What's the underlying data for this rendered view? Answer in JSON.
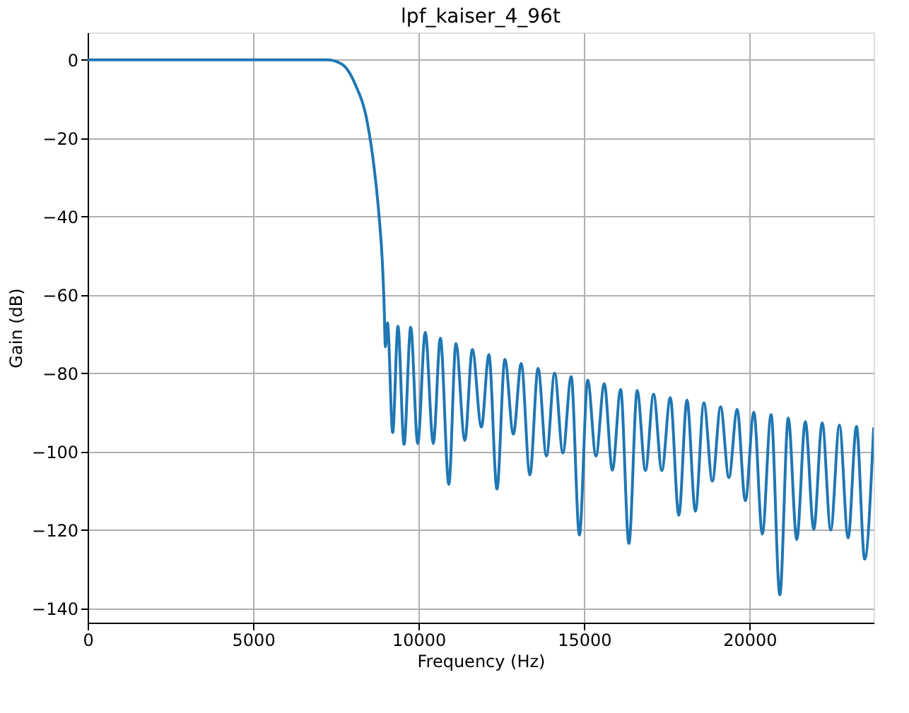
{
  "chart_data": {
    "type": "line",
    "title": "lpf_kaiser_4_96t",
    "xlabel": "Frequency (Hz)",
    "ylabel": "Gain (dB)",
    "xlim": [
      0,
      23750
    ],
    "ylim": [
      -143.6,
      7.0
    ],
    "xticks": [
      0,
      5000,
      10000,
      15000,
      20000
    ],
    "yticks": [
      0,
      -20,
      -40,
      -60,
      -80,
      -100,
      -120,
      -140
    ],
    "grid": true,
    "marker": "none",
    "line_style": "solid",
    "series": [
      {
        "color": "#1f77b4",
        "x": [
          0,
          7239,
          7667,
          8094,
          8449,
          8662,
          8805,
          8906,
          8962,
          8991,
          9000,
          9060,
          9218,
          9376,
          9560,
          9761,
          9974,
          10201,
          10444,
          10658,
          10914,
          11128,
          11397,
          11624,
          11897,
          12124,
          12368,
          12607,
          12863,
          13100,
          13363,
          13610,
          13863,
          14110,
          14359,
          14610,
          14859,
          15110,
          15359,
          15610,
          15855,
          16105,
          16355,
          16605,
          16855,
          17100,
          17350,
          17605,
          17863,
          18110,
          18363,
          18620,
          18876,
          19125,
          19376,
          19625,
          19872,
          20130,
          20385,
          20650,
          20915,
          21170,
          21427,
          21685,
          21940,
          22195,
          22453,
          22715,
          22979,
          23230,
          23479,
          23750
        ],
        "values": [
          0,
          0,
          -1.0,
          -6.4,
          -15.9,
          -27.9,
          -39.8,
          -51.8,
          -63.8,
          -72.8,
          -73.2,
          -67.1,
          -95.1,
          -68.0,
          -98.1,
          -68.2,
          -97.9,
          -69.5,
          -97.9,
          -71.0,
          -108.3,
          -72.4,
          -97.1,
          -73.9,
          -93.7,
          -75.2,
          -109.5,
          -76.4,
          -95.5,
          -77.5,
          -105.9,
          -78.7,
          -101.1,
          -79.9,
          -100.3,
          -80.8,
          -121.2,
          -81.7,
          -101.1,
          -82.6,
          -104.7,
          -84.1,
          -123.4,
          -84.4,
          -104.8,
          -85.3,
          -104.8,
          -86.2,
          -116.2,
          -86.8,
          -115.2,
          -87.5,
          -107.5,
          -88.5,
          -106.6,
          -89.2,
          -112.5,
          -89.9,
          -121.0,
          -90.5,
          -136.5,
          -91.4,
          -122.4,
          -92.3,
          -119.8,
          -92.6,
          -120.0,
          -93.2,
          -122.0,
          -93.5,
          -127.4,
          -93.8
        ]
      }
    ]
  }
}
